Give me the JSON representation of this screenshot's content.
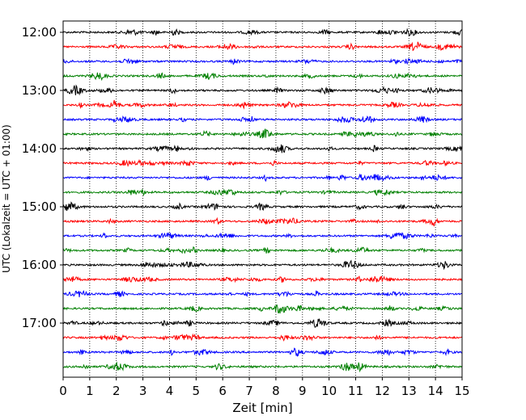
{
  "chart_data": {
    "type": "line",
    "subtype": "helicorder",
    "title": "",
    "xlabel": "Zeit  [min]",
    "ylabel": "UTC (Lokalzeit = UTC + 01:00)",
    "xlim": [
      0,
      15
    ],
    "x_ticks": [
      0,
      1,
      2,
      3,
      4,
      5,
      6,
      7,
      8,
      9,
      10,
      11,
      12,
      13,
      14,
      15
    ],
    "x_tick_labels": [
      "0",
      "1",
      "2",
      "3",
      "4",
      "5",
      "6",
      "7",
      "8",
      "9",
      "10",
      "11",
      "12",
      "13",
      "14",
      "15"
    ],
    "y_tick_labels": [
      "12:00",
      "13:00",
      "14:00",
      "15:00",
      "16:00",
      "17:00"
    ],
    "vertical_grid": true,
    "trace_colors": [
      "#000000",
      "#ff0000",
      "#0000ff",
      "#008000"
    ],
    "trace_minutes": 15,
    "trace_count": 24
  }
}
